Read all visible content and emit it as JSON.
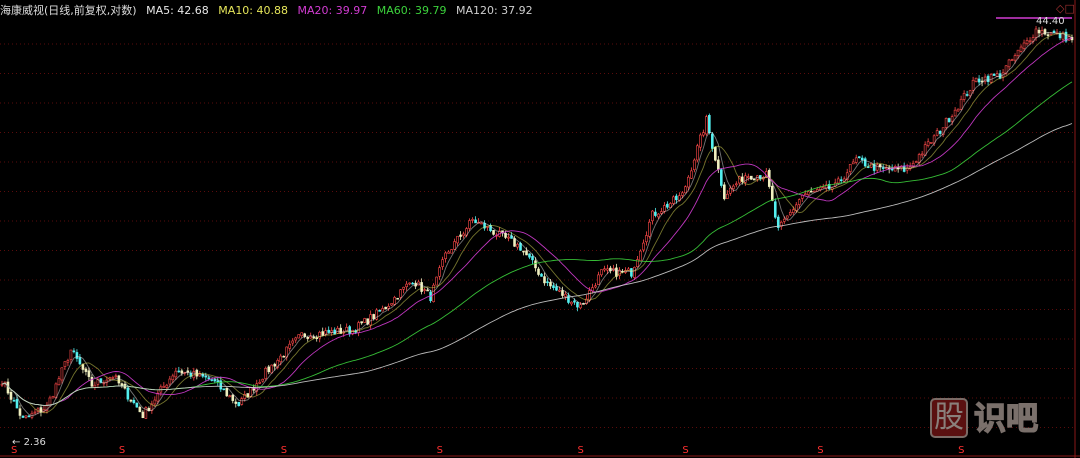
{
  "header": {
    "title": "海康威视(日线,前复权,对数)",
    "ma": [
      {
        "label": "MA5: 42.68",
        "color": "#e8e8e8"
      },
      {
        "label": "MA10: 40.88",
        "color": "#e6e65a"
      },
      {
        "label": "MA20: 39.97",
        "color": "#d23cd2"
      },
      {
        "label": "MA60: 39.79",
        "color": "#3cd23c"
      },
      {
        "label": "MA120: 37.92",
        "color": "#cfcfcf"
      }
    ]
  },
  "annotations": {
    "high_label": "44.40",
    "low_label": "2.36",
    "marker_glyph": "S"
  },
  "watermark": {
    "first": "股",
    "rest": "识吧"
  },
  "chart_data": {
    "type": "candlestick",
    "title": "海康威视(日线,前复权,对数)",
    "yscale": "log",
    "ylim": [
      2.36,
      44.4
    ],
    "grid": true,
    "up_color": "#ff4a4a",
    "down_color": "#54f0f0",
    "approx_close_path": {
      "bar": [
        0,
        7,
        15,
        23,
        30,
        37,
        47,
        58,
        70,
        79,
        87,
        100,
        117,
        127,
        137,
        143,
        148,
        157,
        167,
        173,
        182,
        193,
        200,
        210,
        217,
        227,
        235,
        241,
        248,
        255,
        259,
        267,
        278,
        285,
        293,
        302,
        313,
        325,
        333,
        345,
        352,
        357
      ],
      "close": [
        3.62,
        2.74,
        3.0,
        4.46,
        3.49,
        3.73,
        2.83,
        3.88,
        3.62,
        3.04,
        3.73,
        4.96,
        5.13,
        5.91,
        7.29,
        6.48,
        8.67,
        11.1,
        9.86,
        9.17,
        7.08,
        6.05,
        7.69,
        7.69,
        11.5,
        13.2,
        22.3,
        13.2,
        15.2,
        15.2,
        10.3,
        13.2,
        14.0,
        16.9,
        15.8,
        15.8,
        20.8,
        29.6,
        30.6,
        42.0,
        40.6,
        39.4
      ]
    },
    "signal_markers_bar": [
      4,
      40,
      94,
      146,
      193,
      228,
      273,
      320
    ]
  }
}
